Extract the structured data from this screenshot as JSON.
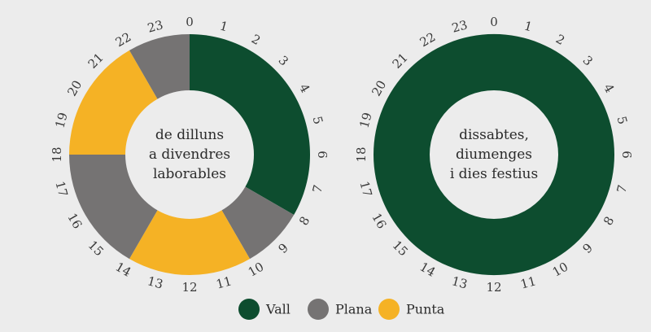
{
  "colors": {
    "Vall": "#0d4d2f",
    "Plana": "#757373",
    "Punta": "#f5b225"
  },
  "legend": [
    {
      "label": "Vall",
      "color": "#0d4d2f"
    },
    {
      "label": "Plana",
      "color": "#757373"
    },
    {
      "label": "Punta",
      "color": "#f5b225"
    }
  ],
  "chart_data": [
    {
      "type": "pie",
      "title_lines": [
        "de dilluns",
        "a divendres",
        "laborables"
      ],
      "hour_labels": [
        "0",
        "1",
        "2",
        "3",
        "4",
        "5",
        "6",
        "7",
        "8",
        "9",
        "10",
        "11",
        "12",
        "13",
        "14",
        "15",
        "16",
        "17",
        "18",
        "19",
        "20",
        "21",
        "22",
        "23"
      ],
      "segments": [
        {
          "category": "Vall",
          "start_hour": 0,
          "end_hour": 8
        },
        {
          "category": "Plana",
          "start_hour": 8,
          "end_hour": 10
        },
        {
          "category": "Punta",
          "start_hour": 10,
          "end_hour": 14
        },
        {
          "category": "Plana",
          "start_hour": 14,
          "end_hour": 18
        },
        {
          "category": "Punta",
          "start_hour": 18,
          "end_hour": 22
        },
        {
          "category": "Plana",
          "start_hour": 22,
          "end_hour": 24
        }
      ]
    },
    {
      "type": "pie",
      "title_lines": [
        "dissabtes,",
        "diumenges",
        "i dies festius"
      ],
      "hour_labels": [
        "0",
        "1",
        "2",
        "3",
        "4",
        "5",
        "6",
        "7",
        "8",
        "9",
        "10",
        "11",
        "12",
        "13",
        "14",
        "15",
        "16",
        "17",
        "18",
        "19",
        "20",
        "21",
        "22",
        "23"
      ],
      "segments": [
        {
          "category": "Vall",
          "start_hour": 0,
          "end_hour": 24
        }
      ]
    }
  ]
}
